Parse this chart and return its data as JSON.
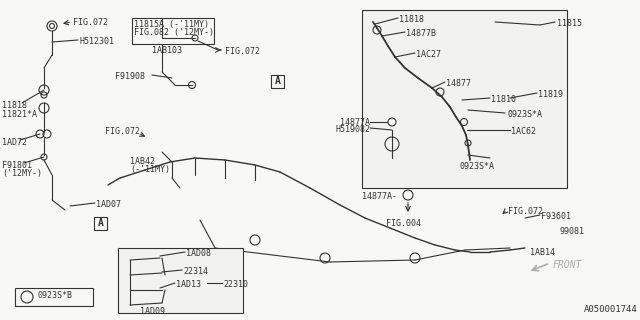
{
  "bg_color": "#f8f8f4",
  "line_color": "#333333",
  "part_number": "A050001744",
  "labels": {
    "fig072_top": "FIG.072",
    "H512301": "H512301",
    "11818_left": "11818",
    "11821A": "11821*A",
    "1AD72": "1AD72",
    "F91801": "F91801",
    "12MY_left": "('12MY-)",
    "1AD07": "1AD07",
    "FIG072_mid_left": "FIG.072",
    "F91908": "F91908",
    "1AB103": "1AB103",
    "FIG072_mid": "FIG.072",
    "11815A_label": "11815A (-'11MY)",
    "FIG082_label": "FIG.082 ('12MY-)",
    "1AB42": "1AB42",
    "11MY": "(-'11MY)",
    "A_marker": "A",
    "11818_right": "11818",
    "14877B": "14877B",
    "1AC27": "1AC27",
    "11815": "11815",
    "14877": "14877",
    "11810": "11810",
    "11819": "11819",
    "0923S_A1": "0923S*A",
    "14877A_box": "14877A",
    "H519082": "H519082",
    "1AC62": "1AC62",
    "0923S_A2": "0923S*A",
    "14877A_out": "14877A-",
    "FIG004": "FIG.004",
    "FIG072_right": "FIG.072",
    "F93601": "F93601",
    "99081": "99081",
    "1AB14": "1AB14",
    "FRONT": "FRONT",
    "1AD08": "1AD08",
    "22314": "22314",
    "1AD13": "1AD13",
    "22310": "22310",
    "1AD09": "1AD09",
    "0923S_B": "0923S*B"
  }
}
